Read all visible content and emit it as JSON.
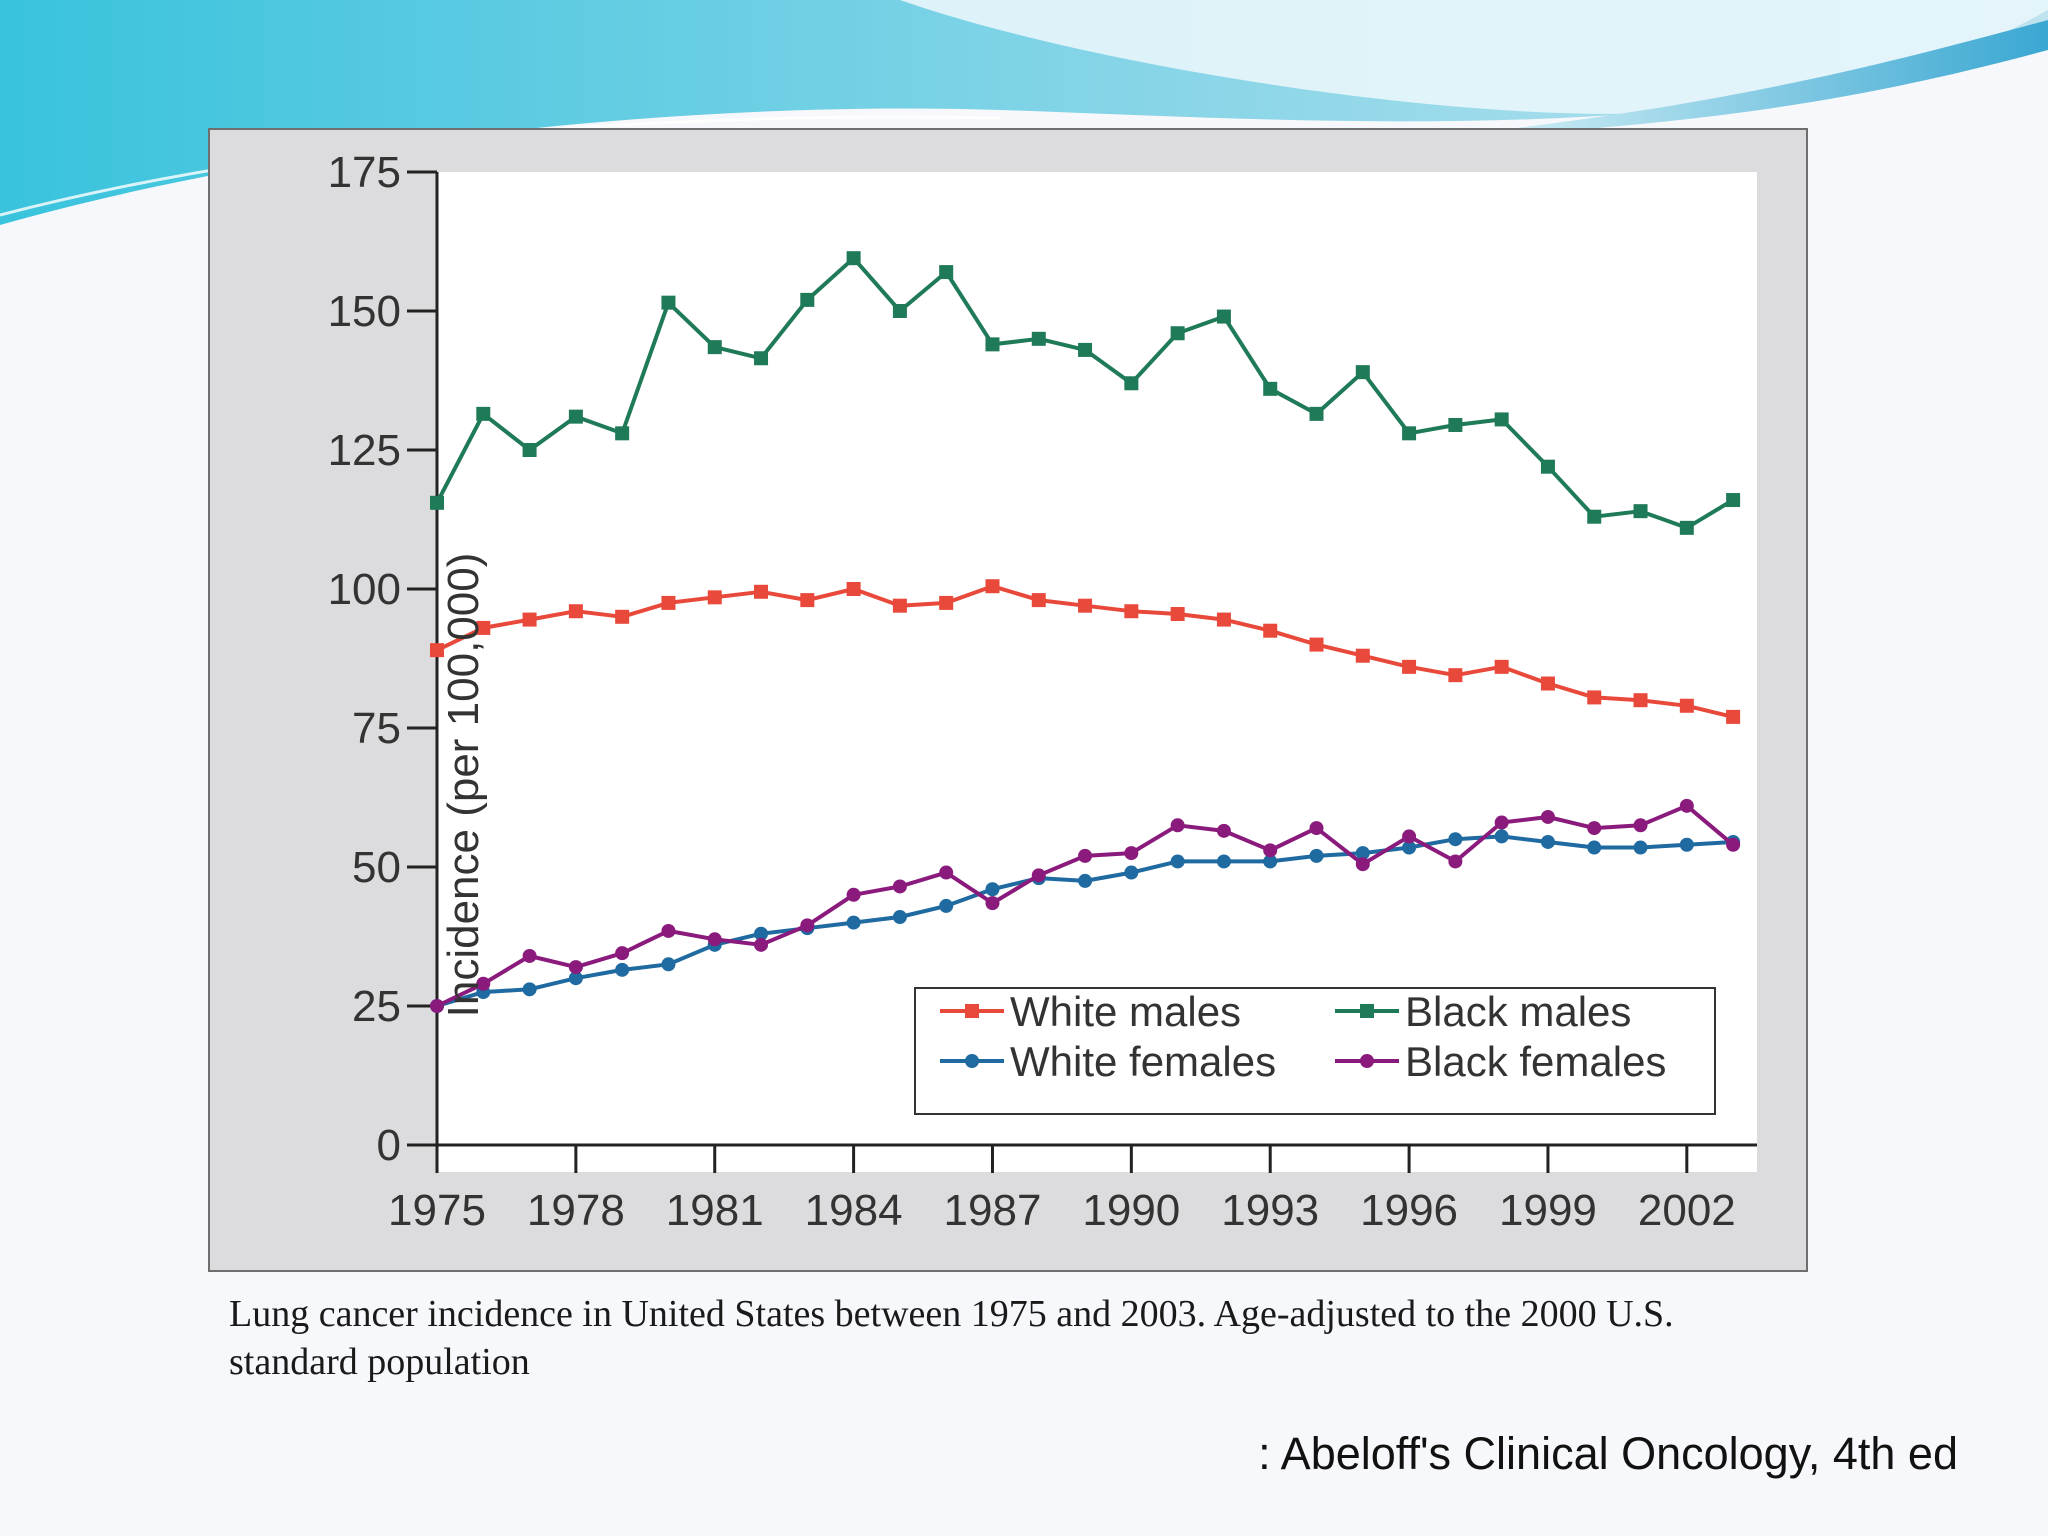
{
  "slide": {
    "caption": "Lung cancer incidence in United States between 1975 and 2003. Age-adjusted to the 2000 U.S. standard population",
    "source": ": Abeloff's Clinical Oncology, 4th ed",
    "colors": {
      "background": "#f7f8fb",
      "wave_light": "#bfe8f0",
      "wave_dark": "#3fb6d6",
      "panel": "#dcdcde"
    }
  },
  "chart_data": {
    "type": "line",
    "title": "",
    "xlabel": "",
    "ylabel": "Incidence (per 100,000)",
    "x": [
      1975,
      1976,
      1977,
      1978,
      1979,
      1980,
      1981,
      1982,
      1983,
      1984,
      1985,
      1986,
      1987,
      1988,
      1989,
      1990,
      1991,
      1992,
      1993,
      1994,
      1995,
      1996,
      1997,
      1998,
      1999,
      2000,
      2001,
      2002,
      2003
    ],
    "xlim": [
      1975,
      2003.3
    ],
    "ylim": [
      0,
      175
    ],
    "xticks": [
      1975,
      1978,
      1981,
      1984,
      1987,
      1990,
      1993,
      1996,
      1999,
      2002
    ],
    "yticks": [
      0,
      25,
      50,
      75,
      100,
      125,
      150,
      175
    ],
    "grid": false,
    "legend_position": "bottom-right",
    "series": [
      {
        "name": "White males",
        "color": "#e8493a",
        "marker": "square",
        "values": [
          89,
          93,
          94.5,
          96,
          95,
          97.5,
          98.5,
          99.5,
          98,
          100,
          97,
          97.5,
          100.5,
          98,
          97,
          96,
          95.5,
          94.5,
          92.5,
          90,
          88,
          86,
          84.5,
          86,
          83,
          80.5,
          80,
          79,
          77
        ]
      },
      {
        "name": "Black males",
        "color": "#1f7a58",
        "marker": "square",
        "values": [
          115.5,
          131.5,
          125,
          131,
          128,
          151.5,
          143.5,
          141.5,
          152,
          159.5,
          150,
          157,
          144,
          145,
          143,
          137,
          146,
          149,
          136,
          131.5,
          139,
          128,
          129.5,
          130.5,
          122,
          113,
          114,
          111,
          116
        ]
      },
      {
        "name": "White females",
        "color": "#1f6aa0",
        "marker": "circle",
        "values": [
          25,
          27.5,
          28,
          30,
          31.5,
          32.5,
          36,
          38,
          39,
          40,
          41,
          43,
          46,
          48,
          47.5,
          49,
          51,
          51,
          51,
          52,
          52.5,
          53.5,
          55,
          55.5,
          54.5,
          53.5,
          53.5,
          54,
          54.5
        ]
      },
      {
        "name": "Black females",
        "color": "#8a1a7c",
        "marker": "circle",
        "values": [
          25,
          29,
          34,
          32,
          34.5,
          38.5,
          37,
          36,
          39.5,
          45,
          46.5,
          49,
          43.5,
          48.5,
          52,
          52.5,
          57.5,
          56.5,
          53,
          57,
          50.5,
          55.5,
          51,
          58,
          59,
          57,
          57.5,
          61,
          54
        ]
      }
    ]
  }
}
